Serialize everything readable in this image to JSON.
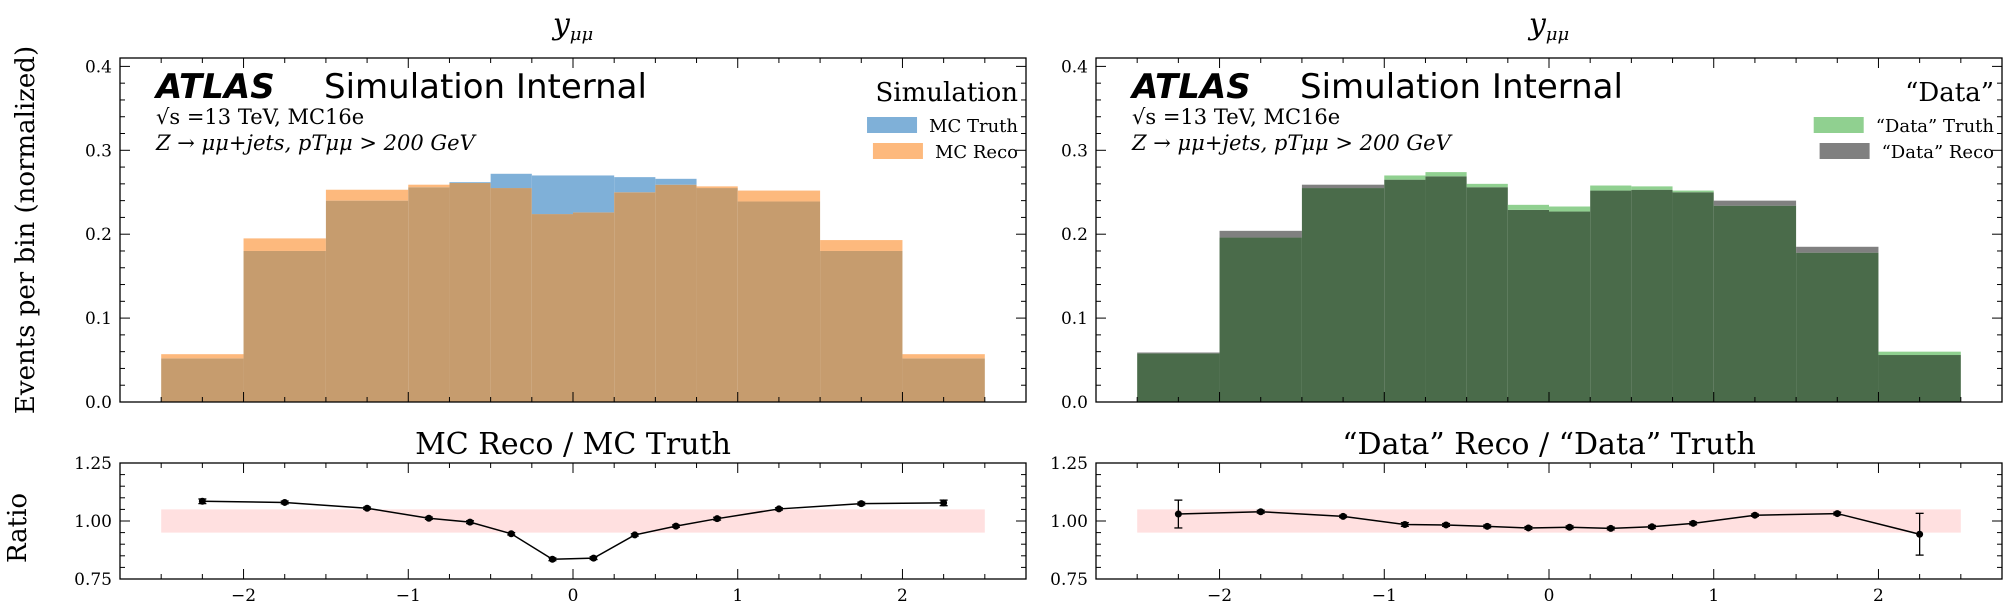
{
  "figure": {
    "ylabel_main": "Events per bin (normalized)",
    "ylabel_ratio": "Ratio"
  },
  "chart_data": [
    {
      "type": "bar",
      "panel": "left-top",
      "title": "yμμ",
      "atlas_label": "ATLAS",
      "atlas_sub": "Simulation Internal",
      "info_line1": "√s =13 TeV, MC16e",
      "info_line2": "Z → μμ+jets, pTμμ > 200 GeV",
      "legend_title": "Simulation",
      "legend_position": "top-right",
      "bin_edges": [
        -2.5,
        -2.0,
        -1.5,
        -1.0,
        -0.75,
        -0.5,
        -0.25,
        0.0,
        0.25,
        0.5,
        0.75,
        1.0,
        1.5,
        2.0,
        2.5
      ],
      "series": [
        {
          "name": "MC Truth",
          "color": "#7fb0d8",
          "values": [
            0.052,
            0.18,
            0.24,
            0.256,
            0.262,
            0.272,
            0.27,
            0.27,
            0.268,
            0.266,
            0.255,
            0.239,
            0.18,
            0.052
          ]
        },
        {
          "name": "MC Reco",
          "color": "#fdb97d",
          "values": [
            0.057,
            0.195,
            0.253,
            0.259,
            0.261,
            0.255,
            0.224,
            0.226,
            0.25,
            0.259,
            0.257,
            0.252,
            0.193,
            0.057
          ]
        }
      ],
      "overlap_color": "#c69c6e",
      "ylim": [
        0,
        0.41
      ],
      "xlim": [
        -2.75,
        2.75
      ],
      "yticks": [
        0.0,
        0.1,
        0.2,
        0.3,
        0.4
      ],
      "ytick_labels": [
        "0.0",
        "0.1",
        "0.2",
        "0.3",
        "0.4"
      ]
    },
    {
      "type": "bar",
      "panel": "right-top",
      "title": "yμμ",
      "atlas_label": "ATLAS",
      "atlas_sub": "Simulation Internal",
      "info_line1": "√s =13 TeV, MC16e",
      "info_line2": "Z → μμ+jets, pTμμ > 200 GeV",
      "legend_title": "“Data”",
      "legend_position": "top-right",
      "bin_edges": [
        -2.5,
        -2.0,
        -1.5,
        -1.0,
        -0.75,
        -0.5,
        -0.25,
        0.0,
        0.25,
        0.5,
        0.75,
        1.0,
        1.5,
        2.0,
        2.5
      ],
      "series": [
        {
          "name": "“Data” Truth",
          "color": "#90d090",
          "values": [
            0.058,
            0.196,
            0.255,
            0.27,
            0.274,
            0.26,
            0.235,
            0.233,
            0.258,
            0.257,
            0.252,
            0.234,
            0.178,
            0.06
          ]
        },
        {
          "name": "“Data” Reco",
          "color": "#808080",
          "values": [
            0.059,
            0.204,
            0.259,
            0.265,
            0.269,
            0.256,
            0.229,
            0.227,
            0.252,
            0.253,
            0.25,
            0.24,
            0.185,
            0.056
          ]
        }
      ],
      "overlap_color": "#4a6b4a",
      "ylim": [
        0,
        0.41
      ],
      "xlim": [
        -2.75,
        2.75
      ],
      "yticks": [
        0.0,
        0.1,
        0.2,
        0.3,
        0.4
      ],
      "ytick_labels": [
        "0.0",
        "0.1",
        "0.2",
        "0.3",
        "0.4"
      ]
    },
    {
      "type": "line",
      "panel": "left-bottom",
      "title": "MC Reco / MC Truth",
      "x": [
        -2.25,
        -1.75,
        -1.25,
        -0.875,
        -0.625,
        -0.375,
        -0.125,
        0.125,
        0.375,
        0.625,
        0.875,
        1.25,
        1.75,
        2.25
      ],
      "y": [
        1.085,
        1.08,
        1.055,
        1.012,
        0.995,
        0.945,
        0.835,
        0.84,
        0.94,
        0.978,
        1.01,
        1.052,
        1.075,
        1.078
      ],
      "yerr": [
        0.01,
        0.006,
        0.005,
        0.005,
        0.006,
        0.005,
        0.006,
        0.006,
        0.005,
        0.005,
        0.006,
        0.005,
        0.006,
        0.012
      ],
      "band": [
        0.95,
        1.05
      ],
      "band_color": "#ffe0e0",
      "xlim": [
        -2.75,
        2.75
      ],
      "ylim": [
        0.75,
        1.25
      ],
      "xticks": [
        -2,
        -1,
        0,
        1,
        2
      ],
      "xtick_labels": [
        "−2",
        "−1",
        "0",
        "1",
        "2"
      ],
      "yticks": [
        0.75,
        1.0,
        1.25
      ],
      "ytick_labels": [
        "0.75",
        "1.00",
        "1.25"
      ]
    },
    {
      "type": "line",
      "panel": "right-bottom",
      "title": "“Data” Reco / “Data” Truth",
      "x": [
        -2.25,
        -1.75,
        -1.25,
        -0.875,
        -0.625,
        -0.375,
        -0.125,
        0.125,
        0.375,
        0.625,
        0.875,
        1.25,
        1.75,
        2.25
      ],
      "y": [
        1.03,
        1.04,
        1.02,
        0.985,
        0.983,
        0.977,
        0.97,
        0.973,
        0.968,
        0.975,
        0.99,
        1.025,
        1.032,
        0.943
      ],
      "yerr": [
        0.06,
        0.006,
        0.005,
        0.008,
        0.006,
        0.006,
        0.006,
        0.006,
        0.006,
        0.006,
        0.006,
        0.005,
        0.006,
        0.09
      ],
      "band": [
        0.95,
        1.05
      ],
      "band_color": "#ffe0e0",
      "xlim": [
        -2.75,
        2.75
      ],
      "ylim": [
        0.75,
        1.25
      ],
      "xticks": [
        -2,
        -1,
        0,
        1,
        2
      ],
      "xtick_labels": [
        "−2",
        "−1",
        "0",
        "1",
        "2"
      ],
      "yticks": [
        0.75,
        1.0,
        1.25
      ],
      "ytick_labels": [
        "0.75",
        "1.00",
        "1.25"
      ]
    }
  ]
}
